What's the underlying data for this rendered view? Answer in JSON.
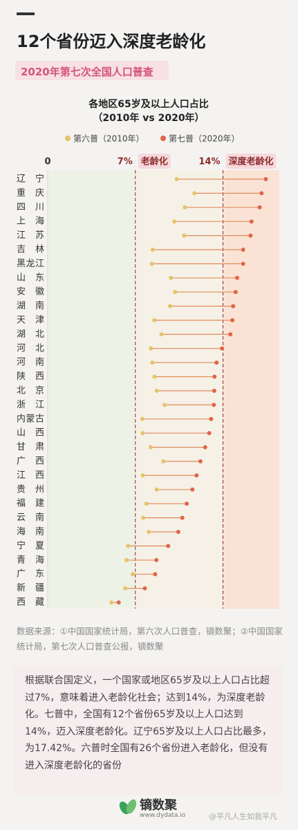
{
  "header": {
    "title": "12个省份迈入深度老龄化",
    "subtitle": "2020年第七次全国人口普查"
  },
  "chart_data": {
    "type": "dumbbell",
    "title": "各地区65岁及以上人口占比",
    "subtitle": "（2010年 vs 2020年）",
    "categories": [
      "辽宁",
      "重庆",
      "四川",
      "上海",
      "江苏",
      "吉林",
      "黑龙江",
      "山东",
      "安徽",
      "湖南",
      "天津",
      "湖北",
      "河北",
      "河南",
      "陕西",
      "北京",
      "浙江",
      "内蒙古",
      "山西",
      "甘肃",
      "广西",
      "江西",
      "贵州",
      "福建",
      "云南",
      "海南",
      "宁夏",
      "青海",
      "广东",
      "新疆",
      "西藏"
    ],
    "series": [
      {
        "name": "第六普（2010年）",
        "color": "#e6c36a",
        "values": [
          10.31,
          11.72,
          10.95,
          10.12,
          10.89,
          8.38,
          8.32,
          9.84,
          10.18,
          9.78,
          8.52,
          9.09,
          8.24,
          8.36,
          8.53,
          8.71,
          9.34,
          7.56,
          7.58,
          8.23,
          9.24,
          7.6,
          8.71,
          7.89,
          7.63,
          8.07,
          6.41,
          6.3,
          6.79,
          6.19,
          5.09
        ]
      },
      {
        "name": "第七普（2020年）",
        "color": "#e0654a",
        "values": [
          17.42,
          17.08,
          16.93,
          16.28,
          16.2,
          15.61,
          15.61,
          15.13,
          15.01,
          14.81,
          14.75,
          14.59,
          13.92,
          13.49,
          13.32,
          13.3,
          13.27,
          13.05,
          12.9,
          12.58,
          12.2,
          11.89,
          11.56,
          11.1,
          10.75,
          10.43,
          9.62,
          8.68,
          8.58,
          7.76,
          5.67
        ]
      }
    ],
    "xlim": [
      0,
      18.5
    ],
    "xticks": [
      0,
      {
        "value": 7,
        "label": "7%"
      },
      {
        "value": 14,
        "label": "14%"
      }
    ],
    "annotations": [
      "老龄化",
      "深度老龄化"
    ]
  },
  "source": "数据来源：①中国国家统计局，第六次人口普查，镝数聚；②中国国家统计局，第七次人口普查公报，镝数聚",
  "note": "根据联合国定义，一个国家或地区65岁及以上人口占比超过7%，意味着进入老龄化社会；达到14%，为深度老龄化。七普中，全国有12个省份65岁及以上人口达到14%，迈入深度老龄化。辽宁65岁及以上人口占比最多，为17.42%。六普时全国有26个省份进入老龄化，但没有进入深度老龄化的省份",
  "footer": {
    "brand": "镝数聚",
    "url": "www.dydata.io",
    "watermark": "@平凡人生如我平凡"
  }
}
